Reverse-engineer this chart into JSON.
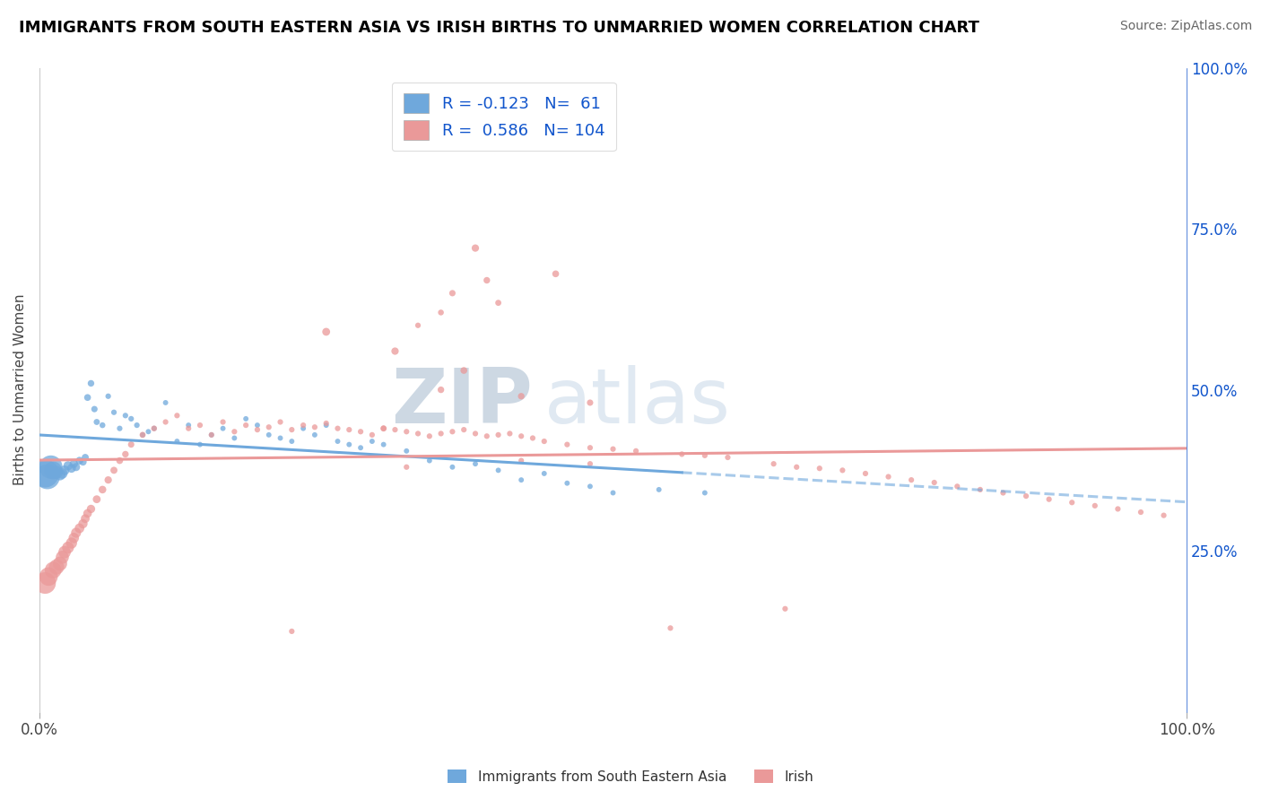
{
  "title": "IMMIGRANTS FROM SOUTH EASTERN ASIA VS IRISH BIRTHS TO UNMARRIED WOMEN CORRELATION CHART",
  "source": "Source: ZipAtlas.com",
  "ylabel": "Births to Unmarried Women",
  "legend_label1": "Immigrants from South Eastern Asia",
  "legend_label2": "Irish",
  "R1": -0.123,
  "N1": 61,
  "R2": 0.586,
  "N2": 104,
  "color_blue": "#6fa8dc",
  "color_pink": "#ea9999",
  "title_color": "#000000",
  "legend_text_color": "#1155cc",
  "right_axis_color": "#1155cc",
  "watermark_color": "#c8d8e8",
  "grid_color": "#cccccc",
  "blue_x": [
    0.005,
    0.007,
    0.01,
    0.012,
    0.015,
    0.018,
    0.02,
    0.022,
    0.025,
    0.028,
    0.03,
    0.032,
    0.035,
    0.038,
    0.04,
    0.042,
    0.045,
    0.048,
    0.05,
    0.055,
    0.06,
    0.065,
    0.07,
    0.075,
    0.08,
    0.085,
    0.09,
    0.095,
    0.1,
    0.11,
    0.12,
    0.13,
    0.14,
    0.15,
    0.16,
    0.17,
    0.18,
    0.19,
    0.2,
    0.21,
    0.22,
    0.23,
    0.24,
    0.25,
    0.26,
    0.27,
    0.28,
    0.29,
    0.3,
    0.32,
    0.34,
    0.36,
    0.38,
    0.4,
    0.42,
    0.44,
    0.46,
    0.48,
    0.5,
    0.54,
    0.58
  ],
  "blue_y": [
    0.37,
    0.365,
    0.38,
    0.375,
    0.372,
    0.368,
    0.37,
    0.375,
    0.382,
    0.378,
    0.385,
    0.38,
    0.39,
    0.388,
    0.395,
    0.488,
    0.51,
    0.47,
    0.45,
    0.445,
    0.49,
    0.465,
    0.44,
    0.46,
    0.455,
    0.445,
    0.43,
    0.435,
    0.44,
    0.48,
    0.42,
    0.445,
    0.415,
    0.43,
    0.44,
    0.425,
    0.455,
    0.445,
    0.43,
    0.425,
    0.42,
    0.44,
    0.43,
    0.445,
    0.42,
    0.415,
    0.41,
    0.42,
    0.415,
    0.405,
    0.39,
    0.38,
    0.385,
    0.375,
    0.36,
    0.37,
    0.355,
    0.35,
    0.34,
    0.345,
    0.34
  ],
  "blue_s": [
    500,
    400,
    350,
    200,
    100,
    80,
    70,
    60,
    55,
    50,
    45,
    42,
    38,
    35,
    32,
    30,
    28,
    26,
    24,
    22,
    20,
    20,
    20,
    20,
    20,
    20,
    18,
    18,
    18,
    18,
    18,
    18,
    18,
    18,
    18,
    18,
    18,
    18,
    18,
    18,
    18,
    18,
    18,
    18,
    18,
    18,
    18,
    18,
    18,
    18,
    18,
    18,
    18,
    18,
    18,
    18,
    18,
    18,
    18,
    18,
    18
  ],
  "pink_x": [
    0.005,
    0.008,
    0.012,
    0.015,
    0.018,
    0.02,
    0.022,
    0.025,
    0.028,
    0.03,
    0.032,
    0.035,
    0.038,
    0.04,
    0.042,
    0.045,
    0.05,
    0.055,
    0.06,
    0.065,
    0.07,
    0.075,
    0.08,
    0.09,
    0.1,
    0.11,
    0.12,
    0.13,
    0.14,
    0.15,
    0.16,
    0.17,
    0.18,
    0.19,
    0.2,
    0.21,
    0.22,
    0.23,
    0.24,
    0.25,
    0.26,
    0.27,
    0.28,
    0.29,
    0.3,
    0.31,
    0.32,
    0.33,
    0.34,
    0.35,
    0.36,
    0.37,
    0.38,
    0.39,
    0.4,
    0.41,
    0.42,
    0.43,
    0.44,
    0.46,
    0.48,
    0.5,
    0.52,
    0.56,
    0.58,
    0.6,
    0.64,
    0.66,
    0.68,
    0.7,
    0.72,
    0.74,
    0.76,
    0.78,
    0.8,
    0.82,
    0.84,
    0.86,
    0.88,
    0.9,
    0.92,
    0.94,
    0.96,
    0.98,
    0.25,
    0.31,
    0.37,
    0.42,
    0.48,
    0.38,
    0.35,
    0.3,
    0.45,
    0.39,
    0.36,
    0.4,
    0.35,
    0.33,
    0.55,
    0.65,
    0.32,
    0.42,
    0.48,
    0.22
  ],
  "pink_y": [
    0.2,
    0.21,
    0.22,
    0.225,
    0.23,
    0.24,
    0.248,
    0.255,
    0.262,
    0.27,
    0.278,
    0.285,
    0.292,
    0.3,
    0.308,
    0.315,
    0.33,
    0.345,
    0.36,
    0.375,
    0.39,
    0.4,
    0.415,
    0.43,
    0.44,
    0.45,
    0.46,
    0.44,
    0.445,
    0.43,
    0.45,
    0.435,
    0.445,
    0.438,
    0.442,
    0.45,
    0.438,
    0.445,
    0.442,
    0.448,
    0.44,
    0.438,
    0.435,
    0.43,
    0.44,
    0.438,
    0.435,
    0.432,
    0.428,
    0.432,
    0.435,
    0.438,
    0.432,
    0.428,
    0.43,
    0.432,
    0.428,
    0.425,
    0.42,
    0.415,
    0.41,
    0.408,
    0.405,
    0.4,
    0.398,
    0.395,
    0.385,
    0.38,
    0.378,
    0.375,
    0.37,
    0.365,
    0.36,
    0.356,
    0.35,
    0.345,
    0.34,
    0.335,
    0.33,
    0.325,
    0.32,
    0.315,
    0.31,
    0.305,
    0.59,
    0.56,
    0.53,
    0.49,
    0.48,
    0.72,
    0.5,
    0.44,
    0.68,
    0.67,
    0.65,
    0.635,
    0.62,
    0.6,
    0.13,
    0.16,
    0.38,
    0.39,
    0.385,
    0.125
  ],
  "pink_s": [
    300,
    220,
    180,
    150,
    130,
    110,
    100,
    90,
    80,
    70,
    65,
    60,
    55,
    50,
    48,
    45,
    40,
    38,
    35,
    32,
    30,
    28,
    26,
    24,
    22,
    20,
    20,
    20,
    20,
    20,
    20,
    20,
    20,
    20,
    20,
    20,
    20,
    20,
    20,
    20,
    20,
    20,
    20,
    20,
    20,
    20,
    20,
    20,
    20,
    20,
    20,
    20,
    20,
    20,
    20,
    20,
    20,
    20,
    20,
    20,
    20,
    20,
    20,
    20,
    20,
    20,
    20,
    20,
    20,
    20,
    20,
    20,
    20,
    20,
    20,
    20,
    20,
    20,
    20,
    20,
    20,
    20,
    20,
    20,
    40,
    35,
    30,
    28,
    26,
    35,
    28,
    25,
    30,
    28,
    26,
    24,
    22,
    20,
    20,
    20,
    20,
    20,
    20,
    20
  ]
}
